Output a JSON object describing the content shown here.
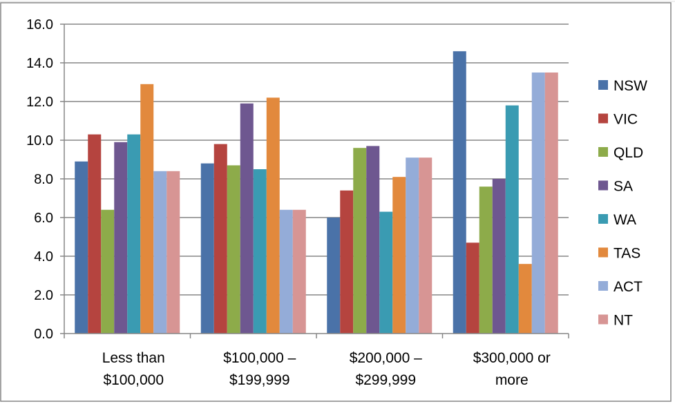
{
  "chart_data": {
    "type": "bar",
    "title": "",
    "xlabel": "",
    "ylabel": "",
    "ylim": [
      0,
      16
    ],
    "yticks": [
      "0.0",
      "2.0",
      "4.0",
      "6.0",
      "8.0",
      "10.0",
      "12.0",
      "14.0",
      "16.0"
    ],
    "grid": true,
    "legend_position": "right",
    "categories": [
      [
        "Less than",
        "$100,000"
      ],
      [
        "$100,000 –",
        "$199,999"
      ],
      [
        "$200,000 –",
        "$299,999"
      ],
      [
        "$300,000 or",
        "more"
      ]
    ],
    "series": [
      {
        "name": "NSW",
        "color": "#4a72a8",
        "values": [
          8.9,
          8.8,
          6.0,
          14.6
        ]
      },
      {
        "name": "VIC",
        "color": "#b5443f",
        "values": [
          10.3,
          9.8,
          7.4,
          4.7
        ]
      },
      {
        "name": "QLD",
        "color": "#8dab4a",
        "values": [
          6.4,
          8.7,
          9.6,
          7.6
        ]
      },
      {
        "name": "SA",
        "color": "#6e5790",
        "values": [
          9.9,
          11.9,
          9.7,
          8.0
        ]
      },
      {
        "name": "WA",
        "color": "#3a9bb2",
        "values": [
          10.3,
          8.5,
          6.3,
          11.8
        ]
      },
      {
        "name": "TAS",
        "color": "#e2893d",
        "values": [
          12.9,
          12.2,
          8.1,
          3.6
        ]
      },
      {
        "name": "ACT",
        "color": "#94acd8",
        "values": [
          8.4,
          6.4,
          9.1,
          13.5
        ]
      },
      {
        "name": "NT",
        "color": "#d79594",
        "values": [
          8.4,
          6.4,
          9.1,
          13.5
        ]
      }
    ]
  }
}
